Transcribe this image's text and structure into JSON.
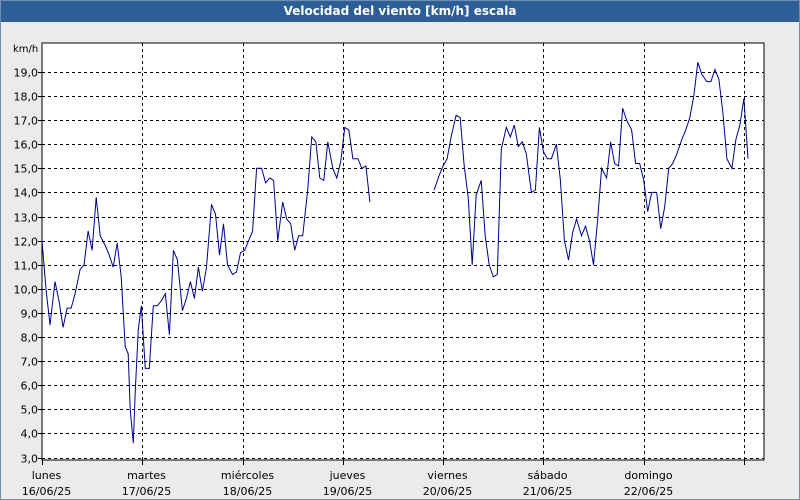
{
  "title": "Velocidad del viento [km/h] escala",
  "chart_data": {
    "type": "line",
    "title": "Velocidad del viento [km/h] escala",
    "ylabel": "km/h",
    "ylim": [
      2.9,
      20.2
    ],
    "xlim": [
      0,
      7.2
    ],
    "grid": true,
    "legend": "none",
    "series_color": "#00008b",
    "y_ticks": [
      "3,0",
      "4,0",
      "5,0",
      "6,0",
      "7,0",
      "8,0",
      "9,0",
      "10,0",
      "11,0",
      "12,0",
      "13,0",
      "14,0",
      "15,0",
      "16,0",
      "17,0",
      "18,0",
      "19,0"
    ],
    "x_ticks": [
      {
        "day": "lunes",
        "date": "16/06/25"
      },
      {
        "day": "martes",
        "date": "17/06/25"
      },
      {
        "day": "miércoles",
        "date": "18/06/25"
      },
      {
        "day": "jueves",
        "date": "19/06/25"
      },
      {
        "day": "viernes",
        "date": "20/06/25"
      },
      {
        "day": "sábado",
        "date": "21/06/25"
      },
      {
        "day": "domingo",
        "date": "22/06/25"
      }
    ],
    "segments": [
      [
        [
          0.0,
          12.0
        ],
        [
          0.04,
          10.0
        ],
        [
          0.08,
          8.5
        ],
        [
          0.13,
          10.3
        ],
        [
          0.17,
          9.5
        ],
        [
          0.21,
          8.4
        ],
        [
          0.25,
          9.2
        ],
        [
          0.29,
          9.2
        ],
        [
          0.33,
          9.8
        ],
        [
          0.38,
          10.8
        ],
        [
          0.42,
          11.0
        ],
        [
          0.46,
          12.4
        ],
        [
          0.5,
          11.6
        ],
        [
          0.54,
          13.8
        ],
        [
          0.58,
          12.2
        ],
        [
          0.63,
          11.8
        ],
        [
          0.67,
          11.4
        ],
        [
          0.71,
          10.9
        ],
        [
          0.75,
          11.9
        ],
        [
          0.79,
          10.5
        ],
        [
          0.83,
          7.6
        ],
        [
          0.86,
          7.3
        ],
        [
          0.88,
          5.0
        ],
        [
          0.91,
          3.6
        ],
        [
          0.93,
          5.8
        ],
        [
          0.96,
          8.3
        ],
        [
          0.99,
          9.3
        ],
        [
          1.03,
          6.7
        ],
        [
          1.07,
          6.7
        ],
        [
          1.11,
          9.3
        ],
        [
          1.15,
          9.3
        ],
        [
          1.19,
          9.5
        ],
        [
          1.23,
          9.8
        ],
        [
          1.27,
          8.1
        ],
        [
          1.31,
          11.6
        ],
        [
          1.35,
          11.2
        ],
        [
          1.4,
          9.1
        ],
        [
          1.44,
          9.6
        ],
        [
          1.48,
          10.3
        ],
        [
          1.52,
          9.6
        ],
        [
          1.56,
          10.9
        ],
        [
          1.6,
          9.9
        ],
        [
          1.64,
          10.9
        ],
        [
          1.69,
          13.5
        ],
        [
          1.73,
          13.1
        ],
        [
          1.77,
          11.4
        ],
        [
          1.81,
          12.7
        ],
        [
          1.85,
          11.0
        ],
        [
          1.9,
          10.6
        ],
        [
          1.94,
          10.7
        ],
        [
          1.98,
          11.5
        ],
        [
          2.02,
          11.6
        ],
        [
          2.06,
          12.0
        ],
        [
          2.1,
          12.4
        ],
        [
          2.14,
          15.0
        ],
        [
          2.19,
          15.0
        ],
        [
          2.23,
          14.4
        ],
        [
          2.27,
          14.6
        ],
        [
          2.31,
          14.5
        ],
        [
          2.35,
          12.0
        ],
        [
          2.4,
          13.6
        ],
        [
          2.44,
          12.9
        ],
        [
          2.48,
          12.7
        ],
        [
          2.52,
          11.6
        ],
        [
          2.56,
          12.2
        ],
        [
          2.6,
          12.2
        ],
        [
          2.65,
          14.1
        ],
        [
          2.69,
          16.3
        ],
        [
          2.73,
          16.1
        ],
        [
          2.77,
          14.6
        ],
        [
          2.81,
          14.5
        ],
        [
          2.85,
          16.1
        ],
        [
          2.9,
          15.0
        ],
        [
          2.94,
          14.6
        ],
        [
          2.98,
          15.3
        ],
        [
          3.02,
          16.7
        ],
        [
          3.06,
          16.6
        ],
        [
          3.1,
          15.4
        ],
        [
          3.15,
          15.4
        ],
        [
          3.19,
          15.0
        ],
        [
          3.23,
          15.1
        ],
        [
          3.27,
          13.6
        ]
      ],
      [
        [
          3.91,
          14.1
        ],
        [
          3.96,
          14.7
        ],
        [
          4.0,
          15.1
        ],
        [
          4.04,
          15.4
        ],
        [
          4.08,
          16.3
        ],
        [
          4.13,
          17.2
        ],
        [
          4.17,
          17.1
        ],
        [
          4.21,
          15.1
        ],
        [
          4.25,
          13.8
        ],
        [
          4.29,
          11.0
        ],
        [
          4.33,
          13.9
        ],
        [
          4.38,
          14.5
        ],
        [
          4.42,
          12.2
        ],
        [
          4.46,
          11.0
        ],
        [
          4.5,
          10.5
        ],
        [
          4.54,
          10.6
        ],
        [
          4.58,
          15.8
        ],
        [
          4.63,
          16.7
        ],
        [
          4.67,
          16.3
        ],
        [
          4.71,
          16.8
        ],
        [
          4.75,
          15.9
        ],
        [
          4.79,
          16.1
        ],
        [
          4.83,
          15.6
        ],
        [
          4.88,
          14.0
        ],
        [
          4.92,
          14.1
        ],
        [
          4.96,
          16.7
        ],
        [
          5.0,
          15.7
        ],
        [
          5.04,
          15.4
        ],
        [
          5.08,
          15.4
        ],
        [
          5.13,
          16.0
        ],
        [
          5.17,
          14.5
        ],
        [
          5.21,
          12.0
        ],
        [
          5.25,
          11.2
        ],
        [
          5.29,
          12.3
        ],
        [
          5.33,
          12.9
        ],
        [
          5.38,
          12.2
        ],
        [
          5.42,
          12.6
        ],
        [
          5.46,
          12.0
        ],
        [
          5.5,
          11.0
        ],
        [
          5.54,
          12.8
        ],
        [
          5.58,
          15.0
        ],
        [
          5.63,
          14.6
        ],
        [
          5.67,
          16.1
        ],
        [
          5.71,
          15.2
        ],
        [
          5.75,
          15.1
        ],
        [
          5.79,
          17.5
        ],
        [
          5.83,
          17.0
        ],
        [
          5.88,
          16.6
        ],
        [
          5.92,
          15.2
        ],
        [
          5.96,
          15.2
        ],
        [
          6.0,
          14.5
        ],
        [
          6.04,
          13.2
        ],
        [
          6.08,
          14.0
        ],
        [
          6.13,
          14.0
        ],
        [
          6.17,
          12.5
        ],
        [
          6.21,
          13.4
        ],
        [
          6.25,
          15.0
        ],
        [
          6.29,
          15.2
        ],
        [
          6.33,
          15.6
        ],
        [
          6.38,
          16.2
        ],
        [
          6.42,
          16.6
        ],
        [
          6.46,
          17.1
        ],
        [
          6.5,
          18.0
        ],
        [
          6.54,
          19.4
        ],
        [
          6.58,
          18.9
        ],
        [
          6.63,
          18.6
        ],
        [
          6.67,
          18.6
        ],
        [
          6.71,
          19.1
        ],
        [
          6.75,
          18.7
        ],
        [
          6.79,
          17.3
        ],
        [
          6.83,
          15.4
        ],
        [
          6.88,
          15.0
        ],
        [
          6.92,
          16.2
        ],
        [
          6.96,
          16.8
        ],
        [
          7.0,
          17.9
        ],
        [
          7.04,
          15.4
        ]
      ]
    ]
  }
}
